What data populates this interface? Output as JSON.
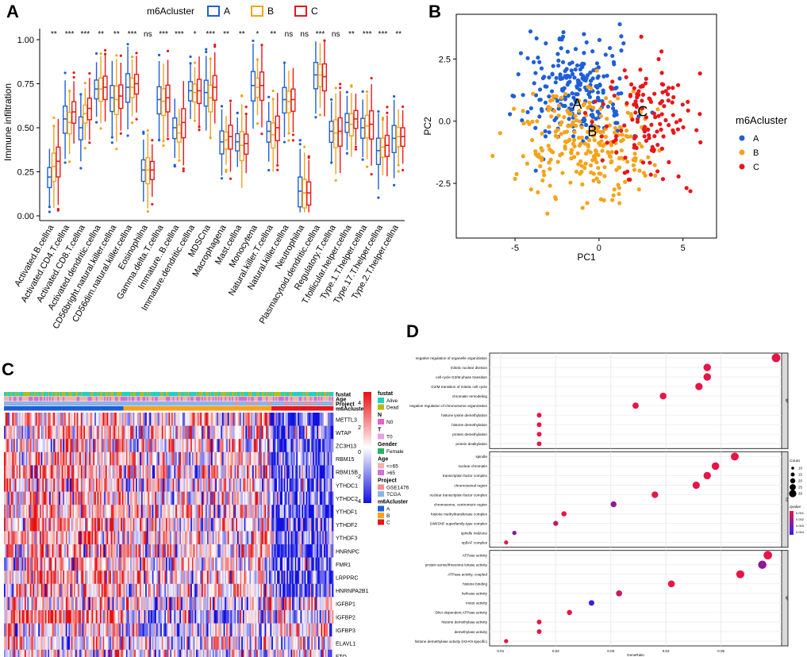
{
  "panels": {
    "a": "A",
    "b": "B",
    "c": "C",
    "d": "D"
  },
  "chart_data": [
    {
      "id": "A",
      "type": "box",
      "legend_title": "m6Acluster",
      "groups": [
        "A",
        "B",
        "C"
      ],
      "colors": {
        "A": "#1f5fd6",
        "B": "#f5a31a",
        "C": "#e8161b"
      },
      "ylabel": "Immune infiltration",
      "ylim": [
        0,
        1
      ],
      "yticks": [
        "0.00",
        "0.25",
        "0.50",
        "0.75",
        "1.00"
      ],
      "categories": [
        "Activated.B.cellna",
        "Activated.CD4.T.cellna",
        "Activated.CD8.T.cellna",
        "Activated.dendritic.cellna",
        "CD56bright.natural.killer.cellna",
        "CD56dim.natural.killer.cellna",
        "Eosinophilna",
        "Gamma.delta.T.cellna",
        "Immature..B.cellna",
        "Immature.dendritic.cellna",
        "MDSCna",
        "Macrophagena",
        "Mast.cellna",
        "Monocytena",
        "Natural.killer.T.cellna",
        "Natural.killer.cellna",
        "Neutrophilna",
        "Plasmacytoid.dendritic.cellna",
        "Regulatory.T.cellna",
        "T.follicular.helper.cellna",
        "Type.1.T.helper.cellna",
        "Type.17.T.helper.cellna",
        "Type.2.T.helper.cellna"
      ],
      "significance": [
        "**",
        "***",
        "***",
        "**",
        "**",
        "***",
        "ns",
        "***",
        "***",
        "*",
        "***",
        "**",
        "**",
        "*",
        "**",
        "ns",
        "ns",
        "***",
        "ns",
        "**",
        "***",
        "***",
        "**"
      ],
      "medians": {
        "A": [
          0.22,
          0.55,
          0.5,
          0.72,
          0.67,
          0.73,
          0.26,
          0.66,
          0.5,
          0.71,
          0.7,
          0.42,
          0.42,
          0.74,
          0.48,
          0.66,
          0.14,
          0.8,
          0.48,
          0.53,
          0.5,
          0.37,
          0.44
        ],
        "B": [
          0.28,
          0.53,
          0.58,
          0.72,
          0.66,
          0.73,
          0.26,
          0.65,
          0.47,
          0.7,
          0.67,
          0.43,
          0.4,
          0.73,
          0.46,
          0.65,
          0.13,
          0.8,
          0.47,
          0.52,
          0.51,
          0.39,
          0.45
        ],
        "C": [
          0.31,
          0.59,
          0.61,
          0.73,
          0.68,
          0.75,
          0.26,
          0.67,
          0.53,
          0.71,
          0.73,
          0.45,
          0.41,
          0.74,
          0.5,
          0.66,
          0.13,
          0.79,
          0.48,
          0.55,
          0.52,
          0.4,
          0.45
        ]
      }
    },
    {
      "id": "B",
      "type": "scatter",
      "xlabel": "PC1",
      "ylabel": "PC2",
      "xlim": [
        -8.5,
        7
      ],
      "ylim": [
        -4.7,
        4.3
      ],
      "xticks": [
        "-5",
        "0",
        "5"
      ],
      "yticks": [
        "2.5",
        "0.0",
        "-2.5"
      ],
      "legend_title": "m6Acluster",
      "clusters": [
        {
          "name": "A",
          "color": "#1f5fd6",
          "center": [
            -1.5,
            1.2
          ],
          "spread": [
            1.7,
            1.1
          ],
          "n": 230
        },
        {
          "name": "B",
          "color": "#f5a31a",
          "center": [
            -0.6,
            -0.9
          ],
          "spread": [
            1.9,
            1.0
          ],
          "n": 260
        },
        {
          "name": "C",
          "color": "#e8161b",
          "center": [
            3.2,
            0.2
          ],
          "spread": [
            1.5,
            1.2
          ],
          "n": 130
        }
      ],
      "centroid_labels": [
        {
          "text": "A",
          "x": -1.3,
          "y": 0.5
        },
        {
          "text": "B",
          "x": -0.4,
          "y": -0.6
        },
        {
          "text": "C",
          "x": 2.6,
          "y": 0.2
        }
      ]
    },
    {
      "id": "C",
      "type": "heatmap",
      "annotation_rows": [
        "fustat",
        "Age",
        "Project",
        "m6Acluster"
      ],
      "genes": [
        "METTL3",
        "WTAP",
        "ZC3H13",
        "RBM15",
        "RBM15B",
        "YTHDC1",
        "YTHDC2",
        "YTHDF1",
        "YTHDF2",
        "YTHDF3",
        "HNRNPC",
        "FMR1",
        "LRPPRC",
        "HNRNPA2B1",
        "IGFBP1",
        "IGFBP2",
        "IGFBP3",
        "ELAVL1",
        "FTO"
      ],
      "cluster_fraction": {
        "A": 0.36,
        "B": 0.45,
        "C": 0.19
      },
      "color_scale": {
        "ticks": [
          "4",
          "2",
          "0",
          "-2",
          "-4"
        ],
        "low": "#1010e0",
        "mid": "#ffffff",
        "high": "#e81010"
      },
      "legend": [
        {
          "title": "fustat",
          "items": [
            {
              "label": "Alive",
              "color": "#1fd1c4"
            },
            {
              "label": "Dead",
              "color": "#b8b81a"
            }
          ]
        },
        {
          "title": "N",
          "items": [
            {
              "label": "N0",
              "color": "#ea5fc8"
            }
          ]
        },
        {
          "title": "T",
          "items": [
            {
              "label": "T0",
              "color": "#e8a0e0"
            }
          ]
        },
        {
          "title": "Gender",
          "items": [
            {
              "label": "Female",
              "color": "#28b45a"
            }
          ]
        },
        {
          "title": "Age",
          "items": [
            {
              "label": "<=65",
              "color": "#f5b0b0"
            },
            {
              "label": ">65",
              "color": "#d070d8"
            }
          ]
        },
        {
          "title": "Project",
          "items": [
            {
              "label": "GSE1476",
              "color": "#f09090"
            },
            {
              "label": "TCGA",
              "color": "#8ab4e8"
            }
          ]
        },
        {
          "title": "m6Acluster",
          "items": [
            {
              "label": "A",
              "color": "#1f5fd6"
            },
            {
              "label": "B",
              "color": "#f5a31a"
            },
            {
              "label": "C",
              "color": "#e8161b"
            }
          ]
        }
      ]
    },
    {
      "id": "D",
      "type": "dot",
      "xlabel": "GeneRatio",
      "xlim": [
        0.008,
        0.061
      ],
      "xticks": [
        0.01,
        0.02,
        0.03,
        0.04,
        0.05
      ],
      "xtick_labels": [
        "0.01",
        "0.02",
        "0.03",
        "0.04",
        "0.05"
      ],
      "facets": [
        {
          "name": "BP",
          "terms": [
            {
              "label": "negative regulation of organelle organization",
              "x": 0.06,
              "count": 38,
              "p": 0.0
            },
            {
              "label": "mitotic nuclear division",
              "x": 0.0475,
              "count": 30,
              "p": 0.0
            },
            {
              "label": "cell cycle G2/M phase transition",
              "x": 0.0475,
              "count": 30,
              "p": 0.0
            },
            {
              "label": "G2/M transition of mitotic cell cycle",
              "x": 0.046,
              "count": 29,
              "p": 0.0
            },
            {
              "label": "chromatin remodeling",
              "x": 0.0395,
              "count": 25,
              "p": 0.0
            },
            {
              "label": "negative regulation of chromosome organization",
              "x": 0.0345,
              "count": 22,
              "p": 0.0
            },
            {
              "label": "histone lysine demethylation",
              "x": 0.017,
              "count": 11,
              "p": 0.0
            },
            {
              "label": "histone demethylation",
              "x": 0.017,
              "count": 11,
              "p": 0.0
            },
            {
              "label": "protein demethylation",
              "x": 0.017,
              "count": 11,
              "p": 0.0
            },
            {
              "label": "protein dealkylation",
              "x": 0.017,
              "count": 11,
              "p": 0.0
            }
          ]
        },
        {
          "name": "CC",
          "terms": [
            {
              "label": "spindle",
              "x": 0.0525,
              "count": 33,
              "p": 0.0
            },
            {
              "label": "nuclear chromatin",
              "x": 0.049,
              "count": 31,
              "p": 0.0
            },
            {
              "label": "transcription factor complex",
              "x": 0.0475,
              "count": 30,
              "p": 0.0
            },
            {
              "label": "chromosomal region",
              "x": 0.0455,
              "count": 29,
              "p": 0.0
            },
            {
              "label": "nuclear transcription factor complex",
              "x": 0.038,
              "count": 24,
              "p": 0.0
            },
            {
              "label": "chromosome, centromeric region",
              "x": 0.0305,
              "count": 19,
              "p": 0.003
            },
            {
              "label": "histone methyltransferase complex",
              "x": 0.0215,
              "count": 14,
              "p": 0.0
            },
            {
              "label": "SWI/SNF superfamily-type complex",
              "x": 0.02,
              "count": 13,
              "p": 0.001
            },
            {
              "label": "spindle midzone",
              "x": 0.0125,
              "count": 8,
              "p": 0.003
            },
            {
              "label": "npBAF complex",
              "x": 0.011,
              "count": 7,
              "p": 0.0
            }
          ]
        },
        {
          "name": "MF",
          "terms": [
            {
              "label": "ATPase activity",
              "x": 0.0585,
              "count": 37,
              "p": 0.0
            },
            {
              "label": "protein serine/threonine kinase activity",
              "x": 0.0575,
              "count": 36,
              "p": 0.003
            },
            {
              "label": "ATPase activity, coupled",
              "x": 0.0535,
              "count": 34,
              "p": 0.0
            },
            {
              "label": "histone binding",
              "x": 0.041,
              "count": 26,
              "p": 0.0
            },
            {
              "label": "helicase activity",
              "x": 0.0315,
              "count": 20,
              "p": 0.001
            },
            {
              "label": "motor activity",
              "x": 0.0265,
              "count": 17,
              "p": 0.006
            },
            {
              "label": "DNA-dependent ATPase activity",
              "x": 0.0225,
              "count": 14,
              "p": 0.0
            },
            {
              "label": "histone demethylase activity",
              "x": 0.017,
              "count": 11,
              "p": 0.0
            },
            {
              "label": "demethylase activity",
              "x": 0.017,
              "count": 11,
              "p": 0.0
            },
            {
              "label": "histone demethylase activity (H3-K9 specific)",
              "x": 0.011,
              "count": 7,
              "p": 0.0
            }
          ]
        }
      ],
      "count_legend": {
        "title": "Count",
        "values": [
          "10",
          "15",
          "20",
          "25",
          "30"
        ]
      },
      "p_legend": {
        "title": "qvalue",
        "values": [
          "0.001",
          "0.002",
          "0.003",
          "0.004"
        ]
      }
    }
  ]
}
